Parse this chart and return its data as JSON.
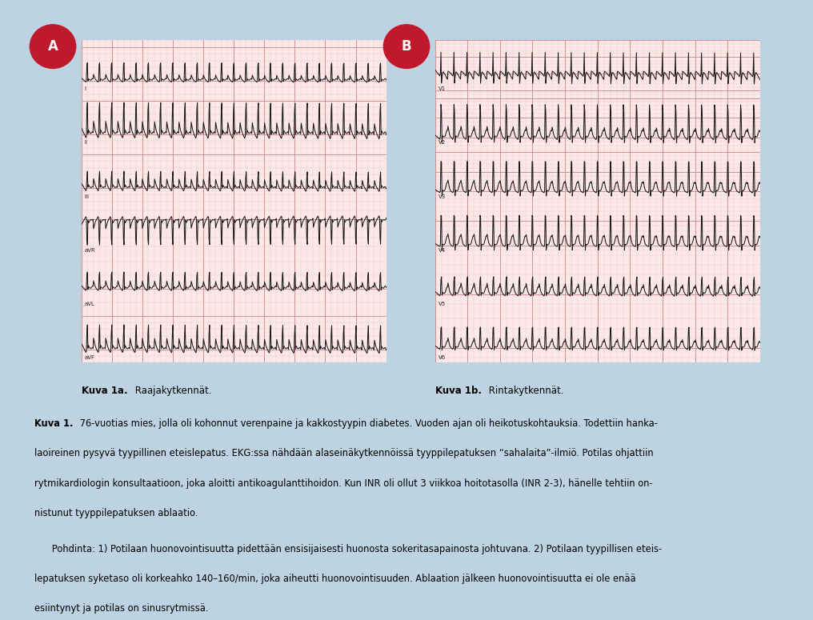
{
  "background_outer": "#bdd3e2",
  "background_inner": "#ddeaf3",
  "ecg_bg": "#fce8e8",
  "ecg_grid_major": "#d49090",
  "ecg_grid_minor": "#f0c0c0",
  "label_a": "A",
  "label_b": "B",
  "label_circle_bg": "#c0192c",
  "white_box_color": "#ffffff",
  "caption_a_bold": "Kuva 1a.",
  "caption_a_normal": " Raajakytkennät.",
  "caption_b_bold": "Kuva 1b.",
  "caption_b_normal": " Rintakytkennät.",
  "body_bold": "Kuva 1.",
  "body_line1": " 76-vuotias mies, jolla oli kohonnut verenpaine ja kakkostyypin diabetes. Vuoden ajan oli heikotuskohtauksia. Todettiin hanka-",
  "body_line2": "laoireinen pysyvä tyypillinen eteislepatus. EKG:ssa nähdään alaseinäkytkennöissä tyyppilepatuksen “sahalaita”-ilmiö. Potilas ohjattiin",
  "body_line3": "rytmikardiologin konsultaatioon, joka aloitti antikoagulanttihoidon. Kun INR oli ollut 3 viikkoa hoitotasolla (INR 2-3), hänelle tehtiin on-",
  "body_line4": "nistunut tyyppilepatuksen ablaatio.",
  "pohdinta_line1": "      Pohdinta: 1) Potilaan huonovointisuutta pidettään ensisijaisesti huonosta sokeritasapainosta johtuvana. 2) Potilaan tyypillisen eteis-",
  "pohdinta_line2": "lepatuksen syketaso oli korkeahko 140–160/min, joka aiheutti huonovointisuuden. Ablaation jälkeen huonovointisuutta ei ole enää",
  "pohdinta_line3": "esiintynyt ja potilas on sinusrytmissä.",
  "leads_left": [
    "I",
    "II",
    "III",
    "aVR",
    "aVL",
    "aVF"
  ],
  "leads_right": [
    "V1",
    "V2",
    "V3",
    "V4",
    "V5",
    "V6"
  ],
  "fig_width": 10.16,
  "fig_height": 7.75
}
